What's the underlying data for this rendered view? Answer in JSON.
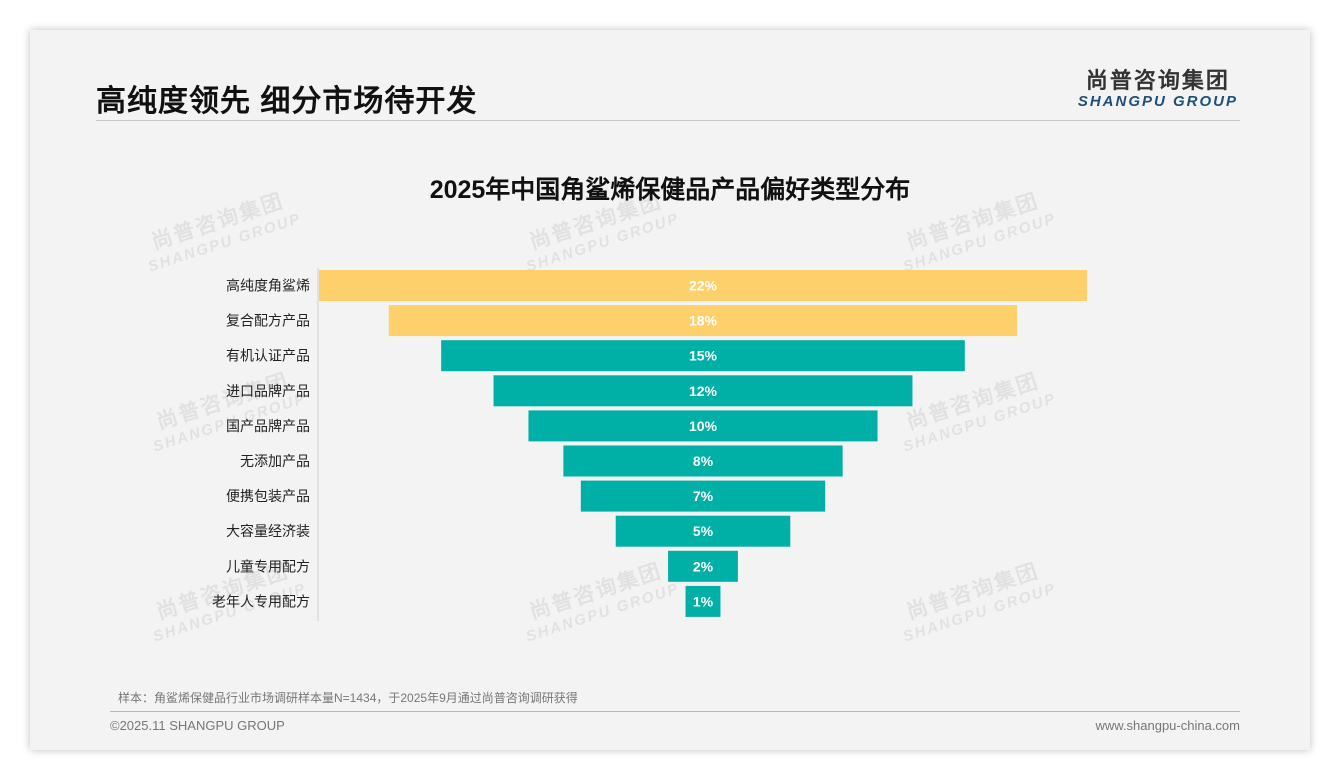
{
  "header": {
    "title": "高纯度领先 细分市场待开发",
    "logo_cn": "尚普咨询集团",
    "logo_en": "SHANGPU GROUP"
  },
  "watermark": {
    "cn": "尚普咨询集团",
    "en": "SHANGPU GROUP"
  },
  "chart_data": {
    "type": "bar",
    "orientation": "horizontal-centered-funnel",
    "title": "2025年中国角鲨烯保健品产品偏好类型分布",
    "categories": [
      "高纯度角鲨烯",
      "复合配方产品",
      "有机认证产品",
      "进口品牌产品",
      "国产品牌产品",
      "无添加产品",
      "便携包装产品",
      "大容量经济装",
      "儿童专用配方",
      "老年人专用配方"
    ],
    "values": [
      22,
      18,
      15,
      12,
      10,
      8,
      7,
      5,
      2,
      1
    ],
    "labels": [
      "22%",
      "18%",
      "15%",
      "12%",
      "10%",
      "8%",
      "7%",
      "5%",
      "2%",
      "1%"
    ],
    "colors": [
      "#FED06B",
      "#FED06B",
      "#00AFA5",
      "#00AFA5",
      "#00AFA5",
      "#00AFA5",
      "#00AFA5",
      "#00AFA5",
      "#00AFA5",
      "#00AFA5"
    ],
    "unit": "%",
    "xlim": [
      0,
      22
    ]
  },
  "footer": {
    "note": "样本：角鲨烯保健品行业市场调研样本量N=1434，于2025年9月通过尚普咨询调研获得",
    "copyright": "©2025.11 SHANGPU GROUP",
    "url": "www.shangpu-china.com"
  }
}
